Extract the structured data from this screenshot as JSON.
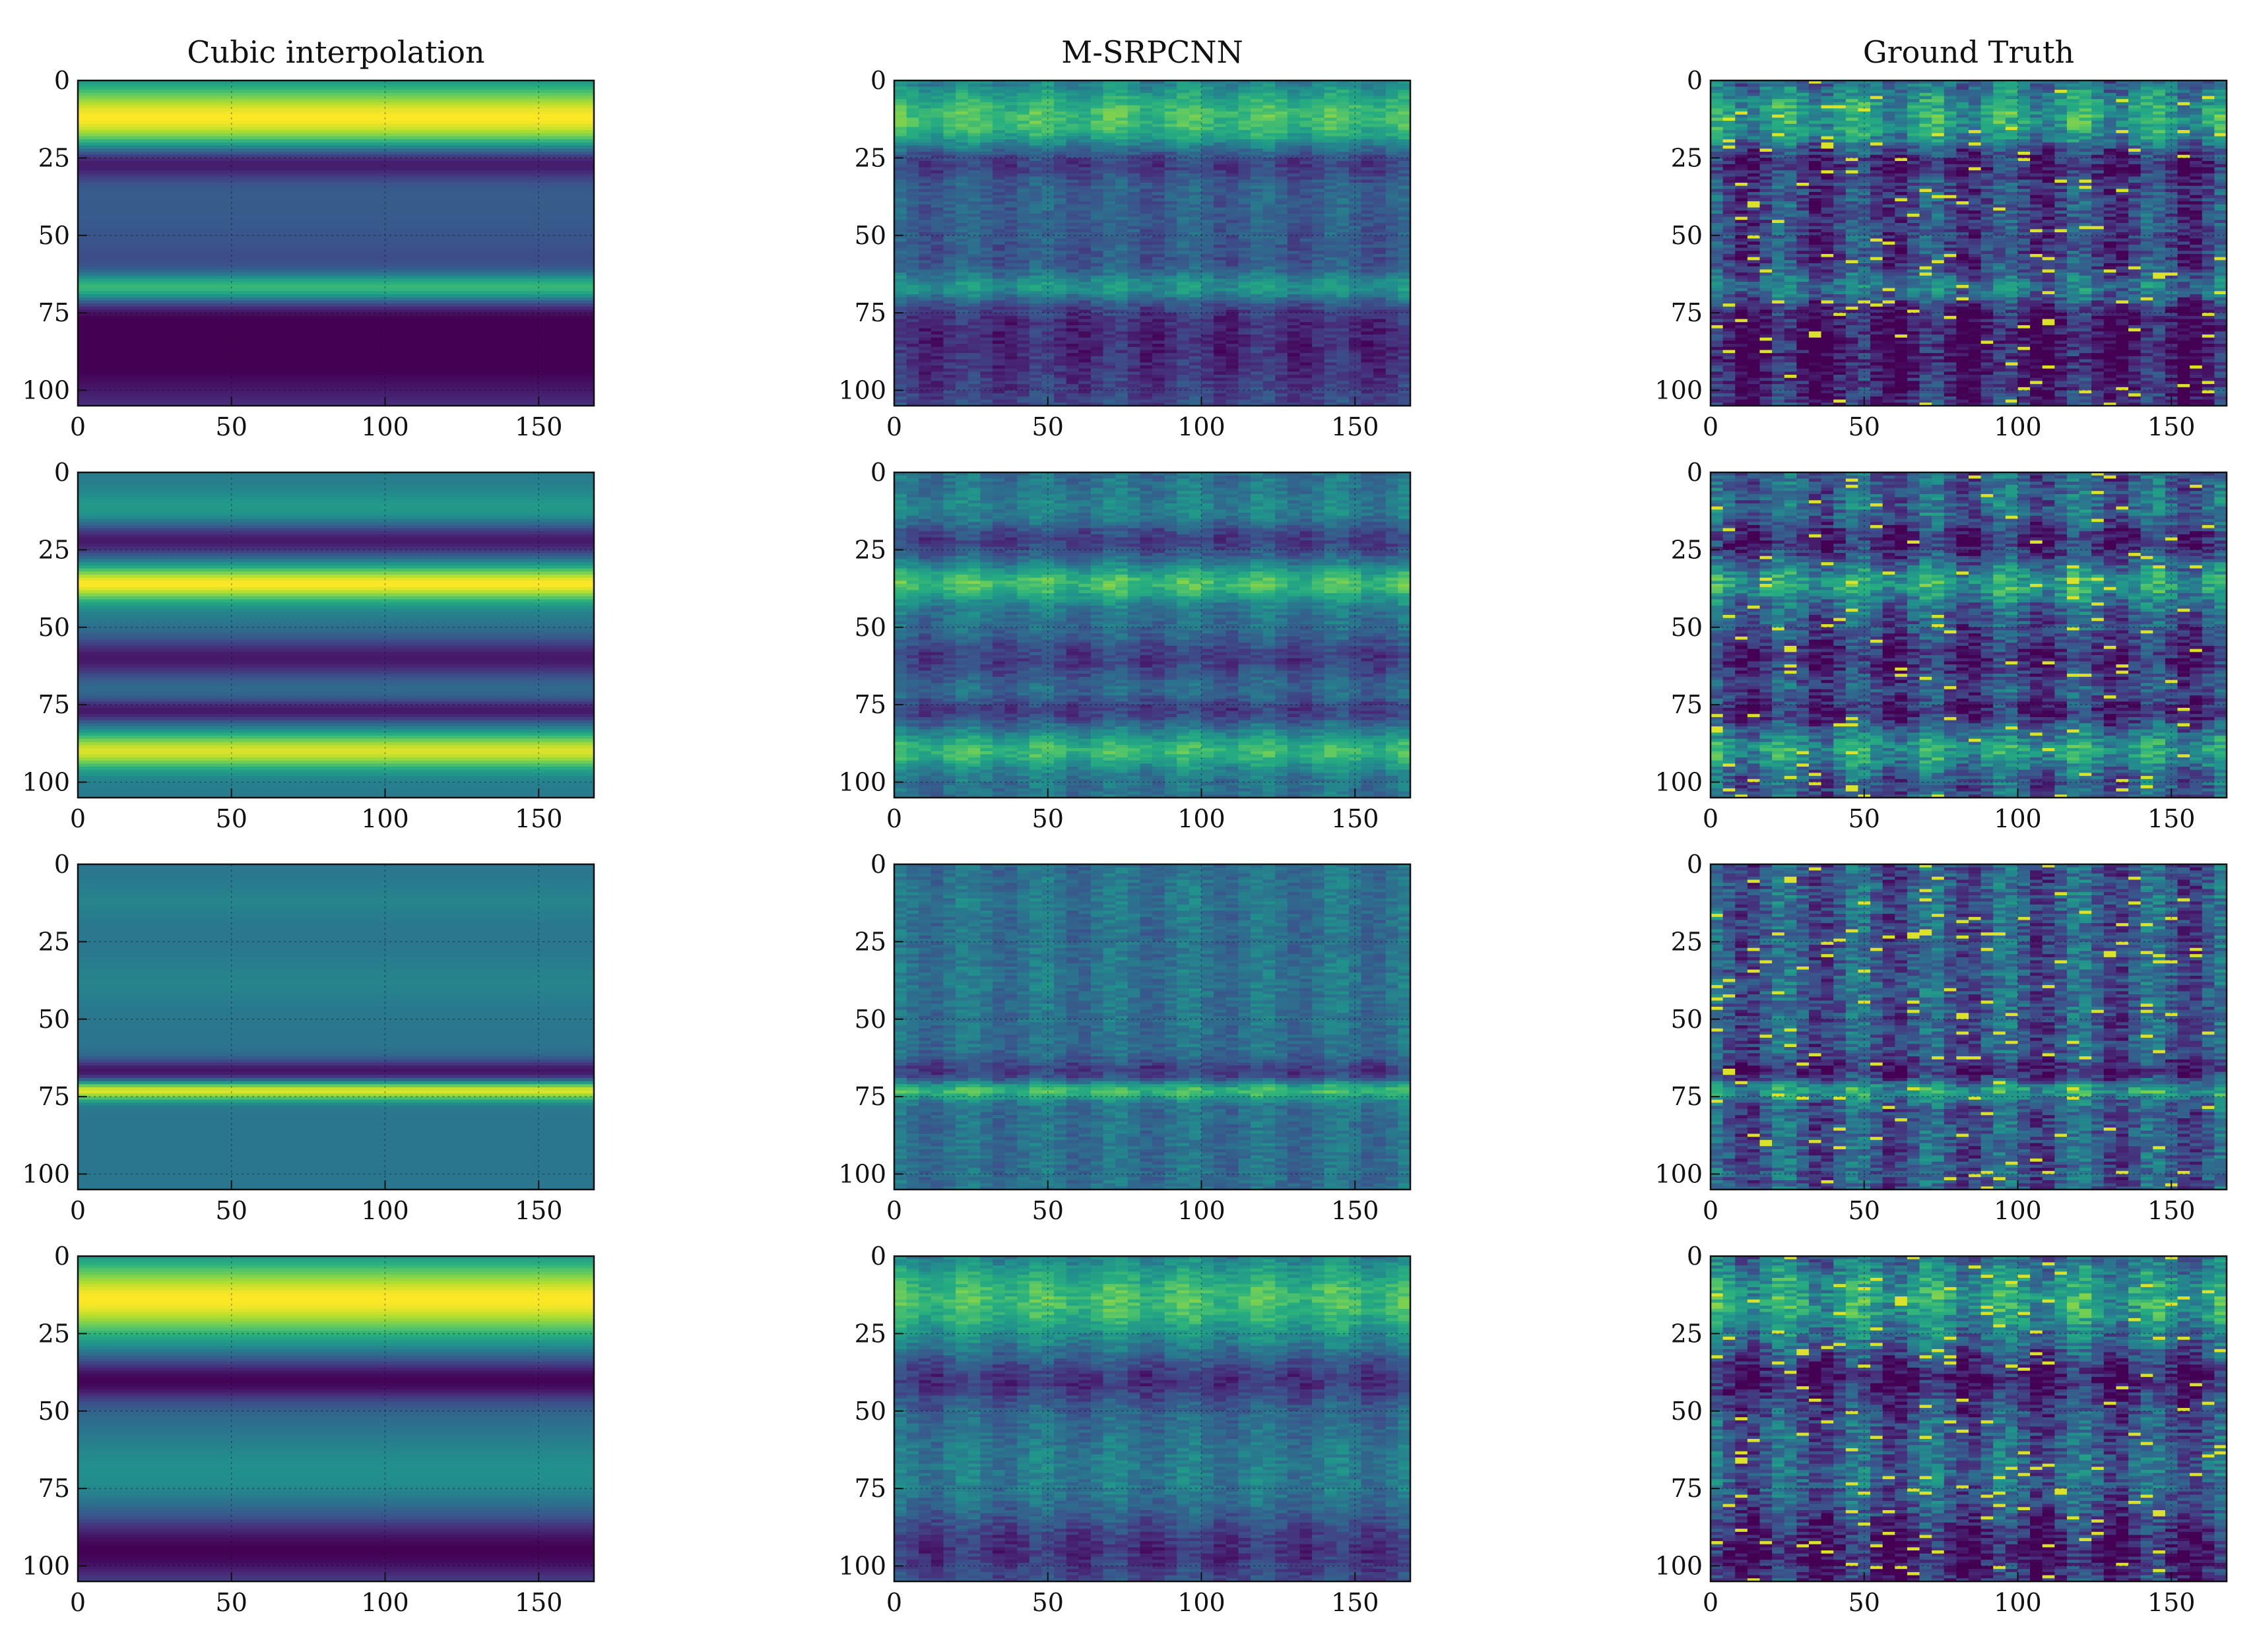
{
  "chart_data": {
    "type": "heatmap",
    "layout": "4 rows x 3 columns",
    "colormap": "viridis",
    "value_range": [
      0,
      1
    ],
    "column_titles": [
      "Cubic interpolation",
      "M-SRPCNN",
      "Ground Truth"
    ],
    "xlim": [
      0,
      168
    ],
    "ylim": [
      105,
      0
    ],
    "xticks": [
      0,
      50,
      100,
      150
    ],
    "yticks": [
      0,
      25,
      50,
      75,
      100
    ],
    "grid": true,
    "rows": [
      {
        "row": 1,
        "bright_bands": [
          {
            "center": 12,
            "width": 8,
            "peak": 1.0
          },
          {
            "center": 67,
            "width": 3.5,
            "peak": 0.85
          }
        ],
        "dark_bands": [
          {
            "center": 26,
            "width": 4
          },
          {
            "center": 85,
            "width": 16
          }
        ],
        "base_level": 0.3,
        "vertical_stripe_period": 24
      },
      {
        "row": 2,
        "bright_bands": [
          {
            "center": 12,
            "width": 4,
            "peak": 0.55
          },
          {
            "center": 36,
            "width": 4,
            "peak": 1.0
          },
          {
            "center": 90,
            "width": 4,
            "peak": 0.95
          }
        ],
        "dark_bands": [
          {
            "center": 22,
            "width": 4
          },
          {
            "center": 60,
            "width": 5
          },
          {
            "center": 77,
            "width": 3
          }
        ],
        "base_level": 0.42,
        "vertical_stripe_period": 24
      },
      {
        "row": 3,
        "bright_bands": [
          {
            "center": 73,
            "width": 2.2,
            "peak": 1.0
          },
          {
            "center": 12,
            "width": 4,
            "peak": 0.45
          },
          {
            "center": 38,
            "width": 5,
            "peak": 0.45
          }
        ],
        "dark_bands": [
          {
            "center": 67,
            "width": 3
          }
        ],
        "base_level": 0.4,
        "vertical_stripe_period": 24
      },
      {
        "row": 4,
        "bright_bands": [
          {
            "center": 14,
            "width": 9,
            "peak": 1.0
          },
          {
            "center": 70,
            "width": 9,
            "peak": 0.5
          }
        ],
        "dark_bands": [
          {
            "center": 40,
            "width": 5
          },
          {
            "center": 95,
            "width": 8
          }
        ],
        "base_level": 0.35,
        "vertical_stripe_period": 24
      }
    ]
  }
}
